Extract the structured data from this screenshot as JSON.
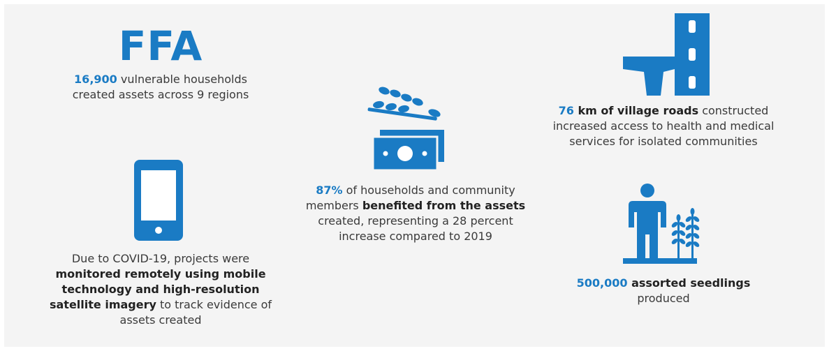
{
  "colors": {
    "accent": "#1a7bc4",
    "background": "#f4f4f4"
  },
  "ffa": {
    "title": "FFA",
    "stat_value": "16,900",
    "line1_rest": " vulnerable households",
    "line2": "created assets across 9 regions"
  },
  "covid": {
    "icon": "mobile-phone-icon",
    "line1": "Due to COVID-19, projects were",
    "bold_line2": "monitored remotely using mobile",
    "bold_line3": "technology and high-resolution",
    "bold_line4": "satellite imagery",
    "line4_rest": " to track evidence of",
    "line5": "assets created"
  },
  "assets": {
    "icon": "wheat-and-money-icon",
    "stat_value": "87%",
    "line1_rest": " of households and community",
    "line2_plain": "members ",
    "line2_bold": "benefited from the assets",
    "line3": "created, representing a 28 percent",
    "line4": "increase compared to 2019"
  },
  "roads": {
    "icon": "road-icon",
    "stat_value": "76",
    "line1_bold": " km of village roads",
    "line1_rest": " constructed",
    "line2": "increased access to health and medical",
    "line3": "services for isolated communities"
  },
  "seedlings": {
    "icon": "farmer-with-crops-icon",
    "stat_value": "500,000",
    "line1_bold": " assorted seedlings",
    "line2": "produced"
  }
}
